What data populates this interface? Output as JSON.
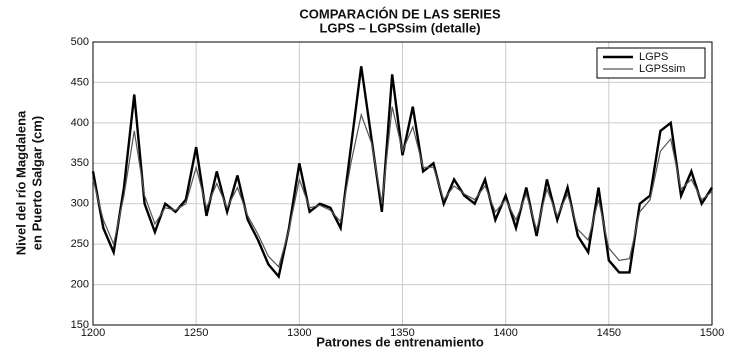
{
  "chart_data": {
    "type": "line",
    "title": "COMPARACIÓN DE LAS SERIES",
    "subtitle": "LGPS – LGPSsim (detalle)",
    "y_label_lines": [
      "Nivel del río Magdalena",
      "en Puerto Salgar (cm)"
    ],
    "x_label": "Patrones de entrenamiento",
    "x": [
      1200,
      1205,
      1210,
      1215,
      1220,
      1225,
      1230,
      1235,
      1240,
      1245,
      1250,
      1255,
      1260,
      1265,
      1270,
      1275,
      1280,
      1285,
      1290,
      1295,
      1300,
      1305,
      1310,
      1315,
      1320,
      1325,
      1330,
      1335,
      1340,
      1345,
      1350,
      1355,
      1360,
      1365,
      1370,
      1375,
      1380,
      1385,
      1390,
      1395,
      1400,
      1405,
      1410,
      1415,
      1420,
      1425,
      1430,
      1435,
      1440,
      1445,
      1450,
      1455,
      1460,
      1465,
      1470,
      1475,
      1480,
      1485,
      1490,
      1495,
      1500
    ],
    "series": [
      {
        "name": "LGPS",
        "color": "#000000",
        "width": 2.4,
        "values": [
          340,
          270,
          240,
          320,
          435,
          300,
          265,
          300,
          290,
          305,
          370,
          285,
          340,
          290,
          335,
          280,
          255,
          225,
          210,
          270,
          350,
          290,
          300,
          295,
          270,
          370,
          470,
          380,
          290,
          460,
          360,
          420,
          340,
          350,
          300,
          330,
          310,
          300,
          330,
          280,
          310,
          270,
          320,
          260,
          330,
          280,
          320,
          260,
          240,
          320,
          230,
          215,
          215,
          300,
          310,
          390,
          400,
          310,
          340,
          300,
          320
        ]
      },
      {
        "name": "LGPSsim",
        "color": "#555555",
        "width": 1.2,
        "values": [
          330,
          280,
          250,
          310,
          390,
          310,
          275,
          295,
          292,
          300,
          345,
          295,
          325,
          295,
          320,
          285,
          262,
          235,
          222,
          268,
          330,
          295,
          298,
          292,
          278,
          350,
          410,
          375,
          300,
          420,
          365,
          395,
          345,
          345,
          305,
          322,
          312,
          305,
          322,
          290,
          305,
          280,
          312,
          268,
          318,
          285,
          312,
          268,
          255,
          305,
          245,
          230,
          232,
          290,
          305,
          365,
          380,
          318,
          330,
          305,
          315
        ]
      }
    ],
    "xlim": [
      1200,
      1500
    ],
    "ylim": [
      150,
      500
    ],
    "xticks": [
      1200,
      1250,
      1300,
      1350,
      1400,
      1450,
      1500
    ],
    "yticks": [
      150,
      200,
      250,
      300,
      350,
      400,
      450,
      500
    ],
    "grid": true,
    "legend": "top-right"
  }
}
